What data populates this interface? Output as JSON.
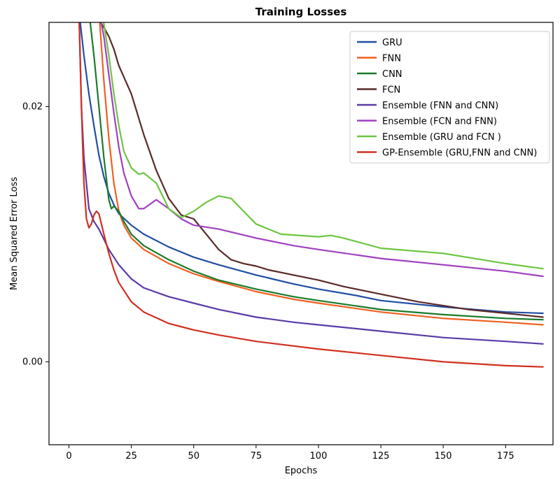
{
  "chart_data": {
    "type": "line",
    "title": "Training Losses",
    "xlabel": "Epochs",
    "ylabel": "Mean Squared Error Loss",
    "xlim": [
      -8,
      194
    ],
    "ylim": [
      -0.0065,
      0.0266
    ],
    "xticks": [
      0,
      25,
      50,
      75,
      100,
      125,
      150,
      175
    ],
    "xtick_labels": [
      "0",
      "25",
      "50",
      "75",
      "100",
      "125",
      "150",
      "175"
    ],
    "yticks": [
      0.0,
      0.02
    ],
    "ytick_labels": [
      "0.00",
      "0.02"
    ],
    "grid": false,
    "legend_position": "top-right",
    "series": [
      {
        "name": "GRU",
        "color": "#1f4fa3",
        "x": [
          4,
          6,
          8,
          10,
          12,
          14,
          16,
          18,
          20,
          25,
          30,
          40,
          50,
          60,
          75,
          90,
          100,
          115,
          125,
          150,
          175,
          190
        ],
        "y": [
          0.0275,
          0.024,
          0.021,
          0.0185,
          0.0162,
          0.0145,
          0.0132,
          0.0123,
          0.0116,
          0.0107,
          0.01,
          0.009,
          0.0082,
          0.0076,
          0.0068,
          0.0061,
          0.0057,
          0.0052,
          0.0048,
          0.0043,
          0.0039,
          0.0038
        ]
      },
      {
        "name": "FNN",
        "color": "#f06020",
        "x": [
          12,
          14,
          16,
          18,
          20,
          22,
          25,
          30,
          40,
          50,
          60,
          75,
          90,
          100,
          125,
          150,
          175,
          190
        ],
        "y": [
          0.0275,
          0.022,
          0.0175,
          0.014,
          0.0118,
          0.0107,
          0.0097,
          0.0088,
          0.0077,
          0.0069,
          0.0063,
          0.0055,
          0.0049,
          0.0046,
          0.0039,
          0.0034,
          0.0031,
          0.0029
        ]
      },
      {
        "name": "CNN",
        "color": "#1a7a2a",
        "x": [
          8,
          10,
          12,
          14,
          16,
          17,
          18,
          20,
          22,
          25,
          30,
          40,
          50,
          60,
          75,
          90,
          100,
          125,
          150,
          175,
          190
        ],
        "y": [
          0.0275,
          0.024,
          0.02,
          0.016,
          0.0127,
          0.012,
          0.0122,
          0.0118,
          0.011,
          0.01,
          0.0091,
          0.008,
          0.0071,
          0.0064,
          0.0057,
          0.0051,
          0.0048,
          0.0041,
          0.0037,
          0.0034,
          0.0033
        ]
      },
      {
        "name": "FCN",
        "color": "#5a2a2a",
        "x": [
          10,
          12,
          14,
          16,
          18,
          20,
          25,
          30,
          35,
          40,
          45,
          50,
          55,
          60,
          65,
          70,
          75,
          80,
          90,
          100,
          110,
          125,
          140,
          150,
          160,
          175,
          190
        ],
        "y": [
          0.0275,
          0.0268,
          0.0262,
          0.0255,
          0.0245,
          0.0232,
          0.021,
          0.0178,
          0.015,
          0.0128,
          0.0115,
          0.0112,
          0.01,
          0.0088,
          0.008,
          0.0077,
          0.0075,
          0.0072,
          0.0068,
          0.0064,
          0.0059,
          0.0053,
          0.0047,
          0.0044,
          0.0041,
          0.0038,
          0.0035
        ]
      },
      {
        "name": "Ensemble (FNN and CNN)",
        "color": "#5a3aa8",
        "x": [
          4,
          5,
          6,
          8,
          10,
          12,
          14,
          16,
          18,
          20,
          25,
          30,
          40,
          50,
          60,
          75,
          90,
          100,
          125,
          150,
          175,
          190
        ],
        "y": [
          0.0275,
          0.02,
          0.016,
          0.012,
          0.011,
          0.0104,
          0.0096,
          0.0088,
          0.0082,
          0.0076,
          0.0065,
          0.0058,
          0.0051,
          0.0046,
          0.0041,
          0.0035,
          0.0031,
          0.0029,
          0.0024,
          0.0019,
          0.0016,
          0.0014
        ]
      },
      {
        "name": "Ensemble (FCN and FNN)",
        "color": "#a040c0",
        "x": [
          12,
          14,
          16,
          18,
          20,
          22,
          25,
          28,
          30,
          35,
          40,
          45,
          50,
          60,
          75,
          90,
          100,
          125,
          150,
          175,
          190
        ],
        "y": [
          0.0275,
          0.0255,
          0.0225,
          0.0195,
          0.0168,
          0.0148,
          0.013,
          0.012,
          0.012,
          0.0127,
          0.012,
          0.0112,
          0.0107,
          0.0104,
          0.0097,
          0.0091,
          0.0088,
          0.0081,
          0.0076,
          0.0071,
          0.0067
        ]
      },
      {
        "name": "Ensemble (GRU and FCN )",
        "color": "#6cc640",
        "x": [
          12,
          14,
          16,
          18,
          20,
          22,
          25,
          28,
          30,
          35,
          40,
          45,
          50,
          55,
          60,
          65,
          70,
          75,
          85,
          100,
          105,
          110,
          125,
          150,
          175,
          190
        ],
        "y": [
          0.0275,
          0.0265,
          0.024,
          0.021,
          0.0185,
          0.0165,
          0.0152,
          0.0147,
          0.0148,
          0.014,
          0.012,
          0.0113,
          0.0118,
          0.0125,
          0.013,
          0.0128,
          0.0118,
          0.0108,
          0.01,
          0.0098,
          0.0099,
          0.0097,
          0.0089,
          0.0085,
          0.0077,
          0.0073
        ]
      },
      {
        "name": "GP-Ensemble (GRU,FNN and CNN)",
        "color": "#d03020",
        "x": [
          4,
          5,
          6,
          7,
          8,
          9,
          10,
          11,
          12,
          13,
          14,
          16,
          18,
          20,
          25,
          30,
          40,
          50,
          60,
          75,
          100,
          125,
          150,
          175,
          190
        ],
        "y": [
          0.0275,
          0.02,
          0.014,
          0.0112,
          0.0105,
          0.0108,
          0.0115,
          0.0118,
          0.0116,
          0.0108,
          0.01,
          0.0085,
          0.0072,
          0.0062,
          0.0047,
          0.0039,
          0.003,
          0.0025,
          0.0021,
          0.0016,
          0.001,
          0.0005,
          0.0,
          -0.0003,
          -0.0004
        ]
      }
    ],
    "annotations": []
  }
}
